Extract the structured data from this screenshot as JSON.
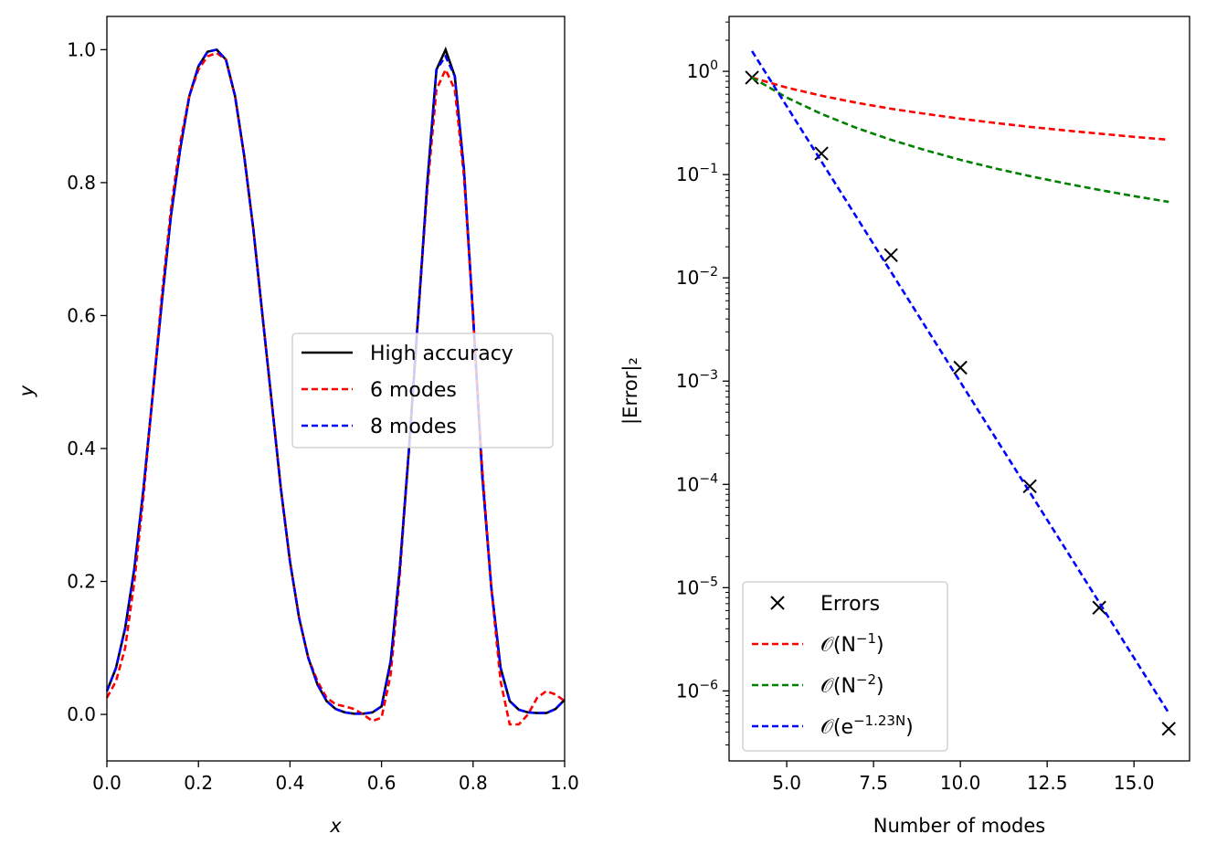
{
  "chart_data": [
    {
      "type": "line",
      "title": "",
      "xlabel": "x",
      "ylabel": "y",
      "xlim": [
        0,
        1
      ],
      "ylim": [
        -0.07,
        1.05
      ],
      "xticks": [
        "0.0",
        "0.2",
        "0.4",
        "0.6",
        "0.8",
        "1.0"
      ],
      "yticks": [
        "0.0",
        "0.2",
        "0.4",
        "0.6",
        "0.8",
        "1.0"
      ],
      "grid": false,
      "legend_position": "center-right",
      "x": [
        0,
        0.02,
        0.04,
        0.06,
        0.08,
        0.1,
        0.12,
        0.14,
        0.16,
        0.18,
        0.2,
        0.22,
        0.24,
        0.26,
        0.28,
        0.3,
        0.32,
        0.34,
        0.36,
        0.38,
        0.4,
        0.42,
        0.44,
        0.46,
        0.48,
        0.5,
        0.52,
        0.54,
        0.56,
        0.58,
        0.6,
        0.62,
        0.64,
        0.66,
        0.68,
        0.7,
        0.72,
        0.74,
        0.76,
        0.78,
        0.8,
        0.82,
        0.84,
        0.86,
        0.88,
        0.9,
        0.92,
        0.94,
        0.96,
        0.98,
        1.0
      ],
      "series": [
        {
          "name": "High accuracy",
          "color": "#000000",
          "style": "solid",
          "values": [
            0.035,
            0.07,
            0.13,
            0.22,
            0.34,
            0.48,
            0.62,
            0.75,
            0.85,
            0.93,
            0.975,
            0.997,
            1.0,
            0.985,
            0.93,
            0.84,
            0.73,
            0.6,
            0.47,
            0.34,
            0.23,
            0.145,
            0.085,
            0.045,
            0.02,
            0.008,
            0.003,
            0.001,
            0.001,
            0.003,
            0.012,
            0.08,
            0.22,
            0.4,
            0.6,
            0.8,
            0.97,
            1.0,
            0.96,
            0.82,
            0.6,
            0.36,
            0.19,
            0.07,
            0.02,
            0.007,
            0.003,
            0.002,
            0.002,
            0.008,
            0.022
          ]
        },
        {
          "name": "6 modes",
          "color": "#ff0000",
          "style": "dashed",
          "values": [
            0.025,
            0.05,
            0.1,
            0.2,
            0.33,
            0.48,
            0.63,
            0.76,
            0.86,
            0.93,
            0.97,
            0.99,
            0.995,
            0.985,
            0.93,
            0.84,
            0.73,
            0.6,
            0.47,
            0.34,
            0.23,
            0.145,
            0.085,
            0.05,
            0.025,
            0.015,
            0.012,
            0.008,
            0.0,
            -0.01,
            -0.005,
            0.06,
            0.21,
            0.4,
            0.6,
            0.79,
            0.94,
            0.97,
            0.94,
            0.81,
            0.6,
            0.37,
            0.19,
            0.05,
            -0.015,
            -0.015,
            0.0,
            0.025,
            0.035,
            0.03,
            0.02
          ]
        },
        {
          "name": "8 modes",
          "color": "#0000ff",
          "style": "dashed",
          "values": [
            0.035,
            0.07,
            0.13,
            0.22,
            0.34,
            0.48,
            0.62,
            0.75,
            0.85,
            0.93,
            0.975,
            0.997,
            1.0,
            0.985,
            0.93,
            0.84,
            0.73,
            0.6,
            0.47,
            0.34,
            0.23,
            0.145,
            0.085,
            0.045,
            0.02,
            0.008,
            0.003,
            0.001,
            0.001,
            0.003,
            0.012,
            0.08,
            0.22,
            0.4,
            0.6,
            0.8,
            0.97,
            0.99,
            0.96,
            0.82,
            0.6,
            0.36,
            0.19,
            0.07,
            0.02,
            0.007,
            0.003,
            0.002,
            0.002,
            0.008,
            0.022
          ]
        }
      ]
    },
    {
      "type": "line",
      "title": "",
      "xlabel": "Number of modes",
      "ylabel": "|Error|₂",
      "xlim": [
        3.34,
        16.6
      ],
      "ylim": [
        2.1e-07,
        3.4
      ],
      "yscale": "log",
      "xticks": [
        "5.0",
        "7.5",
        "10.0",
        "12.5",
        "15.0"
      ],
      "yticks": [
        {
          "base": "10",
          "exp": "0"
        },
        {
          "base": "10",
          "exp": "−1"
        },
        {
          "base": "10",
          "exp": "−2"
        },
        {
          "base": "10",
          "exp": "−3"
        },
        {
          "base": "10",
          "exp": "−4"
        },
        {
          "base": "10",
          "exp": "−5"
        },
        {
          "base": "10",
          "exp": "−6"
        }
      ],
      "grid": false,
      "legend_position": "lower-left",
      "series": [
        {
          "name": "Errors",
          "color": "#000000",
          "style": "markers-x",
          "x": [
            4,
            6,
            8,
            10,
            12,
            14,
            16
          ],
          "values": [
            0.87,
            0.16,
            0.0166,
            0.00135,
            9.6e-05,
            6.4e-06,
            4.3e-07
          ]
        },
        {
          "name": "𝒪(N^{−1})",
          "color": "#ff0000",
          "style": "dashed",
          "x": [
            4,
            5,
            6,
            7,
            8,
            9,
            10,
            11,
            12,
            13,
            14,
            15,
            16
          ],
          "values": [
            0.87,
            0.696,
            0.58,
            0.497,
            0.435,
            0.387,
            0.348,
            0.316,
            0.29,
            0.268,
            0.249,
            0.232,
            0.2175
          ]
        },
        {
          "name": "𝒪(N^{−2})",
          "color": "#008000",
          "style": "dashed",
          "x": [
            4,
            5,
            6,
            7,
            8,
            9,
            10,
            11,
            12,
            13,
            14,
            15,
            16
          ],
          "values": [
            0.87,
            0.557,
            0.387,
            0.284,
            0.2175,
            0.172,
            0.139,
            0.115,
            0.0967,
            0.0824,
            0.071,
            0.0619,
            0.0544
          ]
        },
        {
          "name": "𝒪(e^{−1.23N})",
          "color": "#0000ff",
          "style": "dashed",
          "x": [
            4,
            5,
            6,
            7,
            8,
            9,
            10,
            11,
            12,
            13,
            14,
            15,
            16
          ],
          "values": [
            1.57,
            0.459,
            0.134,
            0.0392,
            0.01147,
            0.00335,
            0.00098,
            0.000287,
            8.38e-05,
            2.45e-05,
            7.16e-06,
            2.09e-06,
            6.12e-07
          ]
        }
      ]
    }
  ]
}
